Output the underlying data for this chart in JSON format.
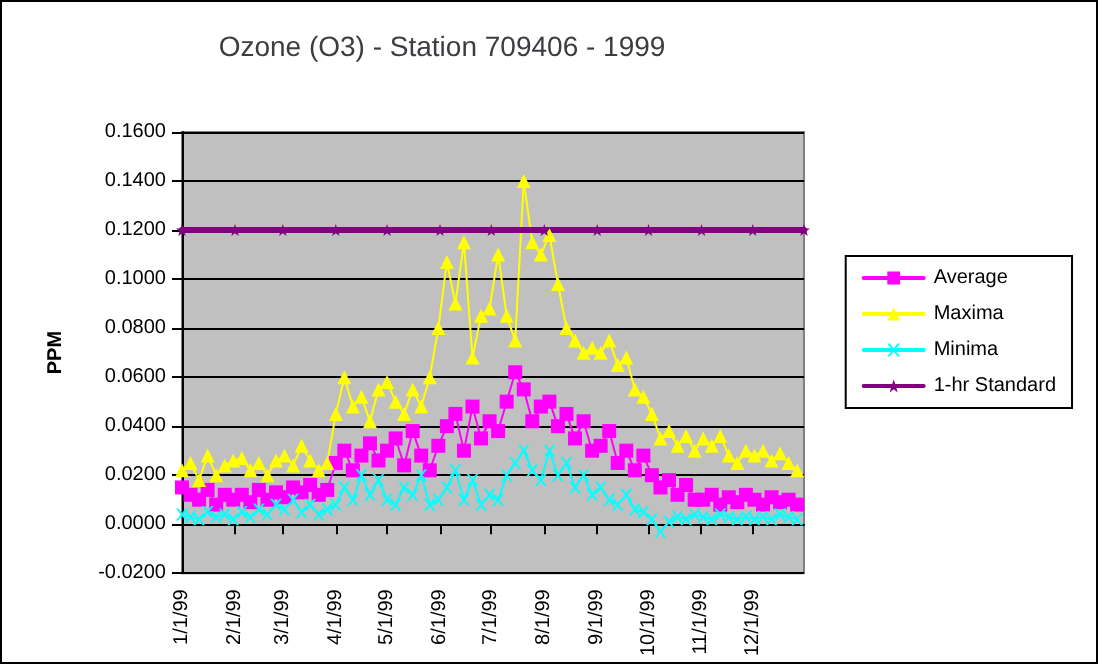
{
  "chart_data": {
    "type": "line",
    "title": "Ozone (O3) - Station 709406 - 1999",
    "ylabel": "PPM",
    "x": [
      "1999-01-01",
      "1999-01-06",
      "1999-01-11",
      "1999-01-16",
      "1999-01-21",
      "1999-01-26",
      "1999-01-31",
      "1999-02-05",
      "1999-02-10",
      "1999-02-15",
      "1999-02-20",
      "1999-02-25",
      "1999-03-02",
      "1999-03-07",
      "1999-03-12",
      "1999-03-17",
      "1999-03-22",
      "1999-03-27",
      "1999-04-01",
      "1999-04-06",
      "1999-04-11",
      "1999-04-16",
      "1999-04-21",
      "1999-04-26",
      "1999-05-01",
      "1999-05-06",
      "1999-05-11",
      "1999-05-16",
      "1999-05-21",
      "1999-05-26",
      "1999-05-31",
      "1999-06-05",
      "1999-06-10",
      "1999-06-15",
      "1999-06-20",
      "1999-06-25",
      "1999-06-30",
      "1999-07-05",
      "1999-07-10",
      "1999-07-15",
      "1999-07-20",
      "1999-07-25",
      "1999-07-30",
      "1999-08-04",
      "1999-08-09",
      "1999-08-14",
      "1999-08-19",
      "1999-08-24",
      "1999-08-29",
      "1999-09-03",
      "1999-09-08",
      "1999-09-13",
      "1999-09-18",
      "1999-09-23",
      "1999-09-28",
      "1999-10-03",
      "1999-10-08",
      "1999-10-13",
      "1999-10-18",
      "1999-10-23",
      "1999-10-28",
      "1999-11-02",
      "1999-11-07",
      "1999-11-12",
      "1999-11-17",
      "1999-11-22",
      "1999-11-27",
      "1999-12-02",
      "1999-12-07",
      "1999-12-12",
      "1999-12-17",
      "1999-12-22",
      "1999-12-27"
    ],
    "series": [
      {
        "name": "Average",
        "color": "#ff00ff",
        "marker": "square",
        "values": [
          0.015,
          0.012,
          0.01,
          0.014,
          0.008,
          0.012,
          0.01,
          0.012,
          0.009,
          0.014,
          0.01,
          0.013,
          0.011,
          0.015,
          0.013,
          0.016,
          0.012,
          0.014,
          0.025,
          0.03,
          0.022,
          0.028,
          0.033,
          0.026,
          0.03,
          0.035,
          0.024,
          0.038,
          0.028,
          0.022,
          0.032,
          0.04,
          0.045,
          0.03,
          0.048,
          0.035,
          0.042,
          0.038,
          0.05,
          0.062,
          0.055,
          0.042,
          0.048,
          0.05,
          0.04,
          0.045,
          0.035,
          0.042,
          0.03,
          0.032,
          0.038,
          0.025,
          0.03,
          0.022,
          0.028,
          0.02,
          0.015,
          0.018,
          0.012,
          0.016,
          0.01,
          0.01,
          0.012,
          0.008,
          0.011,
          0.009,
          0.012,
          0.01,
          0.008,
          0.011,
          0.009,
          0.01,
          0.008
        ]
      },
      {
        "name": "Maxima",
        "color": "#ffff00",
        "marker": "triangle",
        "values": [
          0.022,
          0.025,
          0.018,
          0.028,
          0.02,
          0.024,
          0.026,
          0.027,
          0.022,
          0.025,
          0.02,
          0.026,
          0.028,
          0.024,
          0.032,
          0.026,
          0.022,
          0.025,
          0.045,
          0.06,
          0.048,
          0.052,
          0.042,
          0.055,
          0.058,
          0.05,
          0.045,
          0.055,
          0.048,
          0.06,
          0.08,
          0.107,
          0.09,
          0.115,
          0.068,
          0.085,
          0.088,
          0.11,
          0.085,
          0.075,
          0.14,
          0.115,
          0.11,
          0.118,
          0.098,
          0.08,
          0.075,
          0.07,
          0.072,
          0.07,
          0.075,
          0.065,
          0.068,
          0.055,
          0.052,
          0.045,
          0.035,
          0.038,
          0.032,
          0.036,
          0.03,
          0.035,
          0.032,
          0.036,
          0.028,
          0.025,
          0.03,
          0.028,
          0.03,
          0.026,
          0.029,
          0.025,
          0.022
        ]
      },
      {
        "name": "Minima",
        "color": "#00ffff",
        "marker": "cross",
        "values": [
          0.004,
          0.003,
          0.002,
          0.005,
          0.003,
          0.004,
          0.002,
          0.005,
          0.003,
          0.006,
          0.004,
          0.008,
          0.006,
          0.01,
          0.005,
          0.008,
          0.004,
          0.006,
          0.008,
          0.015,
          0.01,
          0.02,
          0.012,
          0.018,
          0.01,
          0.008,
          0.015,
          0.012,
          0.02,
          0.008,
          0.01,
          0.015,
          0.022,
          0.01,
          0.018,
          0.008,
          0.012,
          0.01,
          0.02,
          0.025,
          0.03,
          0.022,
          0.018,
          0.03,
          0.02,
          0.025,
          0.015,
          0.02,
          0.012,
          0.015,
          0.01,
          0.008,
          0.012,
          0.006,
          0.005,
          0.002,
          -0.003,
          0.001,
          0.003,
          0.002,
          0.004,
          0.003,
          0.002,
          0.004,
          0.003,
          0.002,
          0.003,
          0.002,
          0.003,
          0.002,
          0.004,
          0.003,
          0.002
        ]
      },
      {
        "name": "1-hr Standard",
        "color": "#800080",
        "marker": "star",
        "x": [
          "1999-01-01",
          "1999-02-01",
          "1999-03-01",
          "1999-04-01",
          "1999-05-01",
          "1999-06-01",
          "1999-07-01",
          "1999-08-01",
          "1999-09-01",
          "1999-10-01",
          "1999-11-01",
          "1999-12-01",
          "1999-12-31"
        ],
        "values": [
          0.12,
          0.12,
          0.12,
          0.12,
          0.12,
          0.12,
          0.12,
          0.12,
          0.12,
          0.12,
          0.12,
          0.12,
          0.12
        ]
      }
    ],
    "xlim": [
      "1999-01-01",
      "1999-12-31"
    ],
    "xticks": [
      {
        "value": "1999-01-01",
        "label": "1/1/99"
      },
      {
        "value": "1999-02-01",
        "label": "2/1/99"
      },
      {
        "value": "1999-03-01",
        "label": "3/1/99"
      },
      {
        "value": "1999-04-01",
        "label": "4/1/99"
      },
      {
        "value": "1999-05-01",
        "label": "5/1/99"
      },
      {
        "value": "1999-06-01",
        "label": "6/1/99"
      },
      {
        "value": "1999-07-01",
        "label": "7/1/99"
      },
      {
        "value": "1999-08-01",
        "label": "8/1/99"
      },
      {
        "value": "1999-09-01",
        "label": "9/1/99"
      },
      {
        "value": "1999-10-01",
        "label": "10/1/99"
      },
      {
        "value": "1999-11-01",
        "label": "11/1/99"
      },
      {
        "value": "1999-12-01",
        "label": "12/1/99"
      }
    ],
    "ylim": [
      -0.02,
      0.16
    ],
    "yticks": [
      {
        "value": -0.02,
        "label": "-0.0200"
      },
      {
        "value": 0,
        "label": "0.0000"
      },
      {
        "value": 0.02,
        "label": "0.0200"
      },
      {
        "value": 0.04,
        "label": "0.0400"
      },
      {
        "value": 0.06,
        "label": "0.0600"
      },
      {
        "value": 0.08,
        "label": "0.0800"
      },
      {
        "value": 0.1,
        "label": "0.1000"
      },
      {
        "value": 0.12,
        "label": "0.1200"
      },
      {
        "value": 0.14,
        "label": "0.1400"
      },
      {
        "value": 0.16,
        "label": "0.1600"
      }
    ],
    "grid": "y",
    "legend": "right"
  }
}
